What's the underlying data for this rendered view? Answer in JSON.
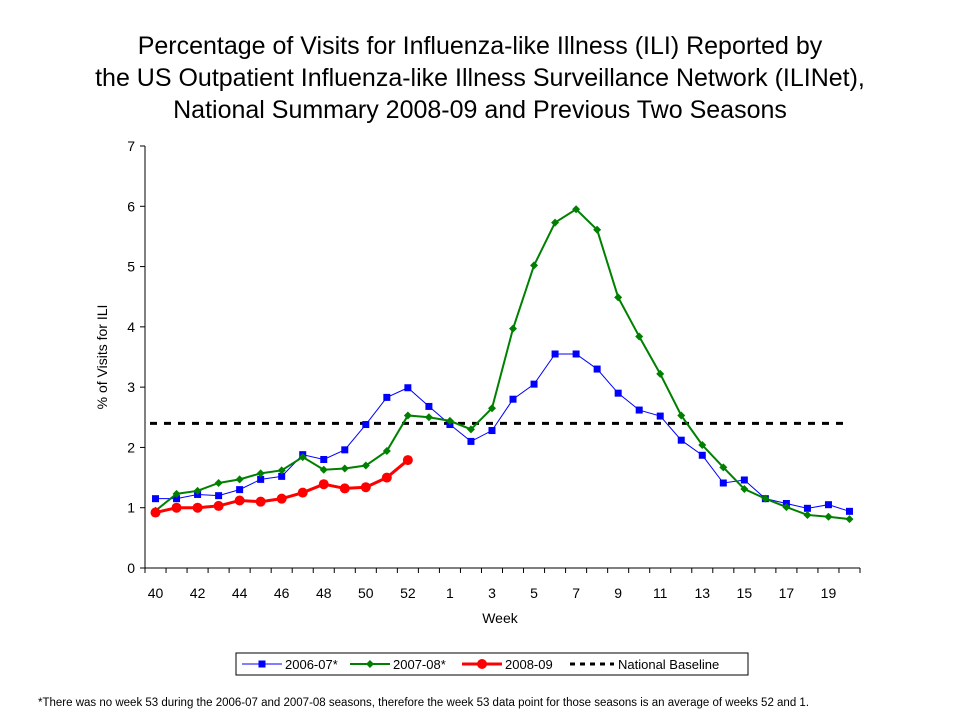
{
  "title": {
    "line1": "Percentage of Visits for Influenza-like Illness (ILI) Reported by",
    "line2": "the US Outpatient Influenza-like Illness Surveillance Network (ILINet),",
    "line3": "National Summary 2008-09 and Previous Two Seasons"
  },
  "footnote": "*There was no week 53 during the 2006-07 and 2007-08 seasons, therefore the week 53 data point for those seasons is an average of weeks 52 and 1.",
  "chart_data": {
    "type": "line",
    "title": "Percentage of Visits for Influenza-like Illness (ILI) Reported by the US Outpatient Influenza-like Illness Surveillance Network (ILINet), National Summary 2008-09 and Previous Two Seasons",
    "xlabel": "Week",
    "ylabel": "% of Visits for ILI",
    "ylim": [
      0,
      7
    ],
    "yticks": [
      "0",
      "1",
      "2",
      "3",
      "4",
      "5",
      "6",
      "7"
    ],
    "categories": [
      "40",
      "41",
      "42",
      "43",
      "44",
      "45",
      "46",
      "47",
      "48",
      "49",
      "50",
      "51",
      "52",
      "53",
      "1",
      "2",
      "3",
      "4",
      "5",
      "6",
      "7",
      "8",
      "9",
      "10",
      "11",
      "12",
      "13",
      "14",
      "15",
      "16",
      "17",
      "18",
      "19",
      "20"
    ],
    "xtick_labels": [
      "40",
      "42",
      "44",
      "46",
      "48",
      "50",
      "52",
      "1",
      "3",
      "5",
      "7",
      "9",
      "11",
      "13",
      "15",
      "17",
      "19"
    ],
    "grid": false,
    "legend_position": "bottom",
    "series": [
      {
        "name": "2006-07*",
        "color": "#0000ff",
        "marker": "square",
        "values": [
          1.15,
          1.15,
          1.22,
          1.2,
          1.3,
          1.47,
          1.52,
          1.88,
          1.8,
          1.96,
          2.38,
          2.83,
          2.99,
          2.68,
          2.38,
          2.1,
          2.28,
          2.8,
          3.05,
          3.55,
          3.55,
          3.3,
          2.9,
          2.62,
          2.52,
          2.12,
          1.87,
          1.41,
          1.46,
          1.15,
          1.07,
          0.99,
          1.05,
          0.94
        ]
      },
      {
        "name": "2007-08*",
        "color": "#008000",
        "marker": "diamond",
        "values": [
          0.95,
          1.23,
          1.28,
          1.41,
          1.47,
          1.57,
          1.62,
          1.84,
          1.63,
          1.65,
          1.7,
          1.94,
          2.53,
          2.5,
          2.44,
          2.3,
          2.65,
          3.97,
          5.02,
          5.73,
          5.95,
          5.61,
          4.49,
          3.84,
          3.22,
          2.53,
          2.04,
          1.67,
          1.31,
          1.15,
          1.01,
          0.88,
          0.85,
          0.81
        ]
      },
      {
        "name": "2008-09",
        "color": "#ff0000",
        "marker": "circle",
        "values": [
          0.92,
          1.0,
          1.0,
          1.03,
          1.12,
          1.1,
          1.15,
          1.25,
          1.39,
          1.32,
          1.34,
          1.5,
          1.79,
          null,
          null,
          null,
          null,
          null,
          null,
          null,
          null,
          null,
          null,
          null,
          null,
          null,
          null,
          null,
          null,
          null,
          null,
          null,
          null,
          null
        ]
      }
    ],
    "baseline": {
      "name": "National Baseline",
      "value": 2.4,
      "color": "#000000"
    }
  }
}
